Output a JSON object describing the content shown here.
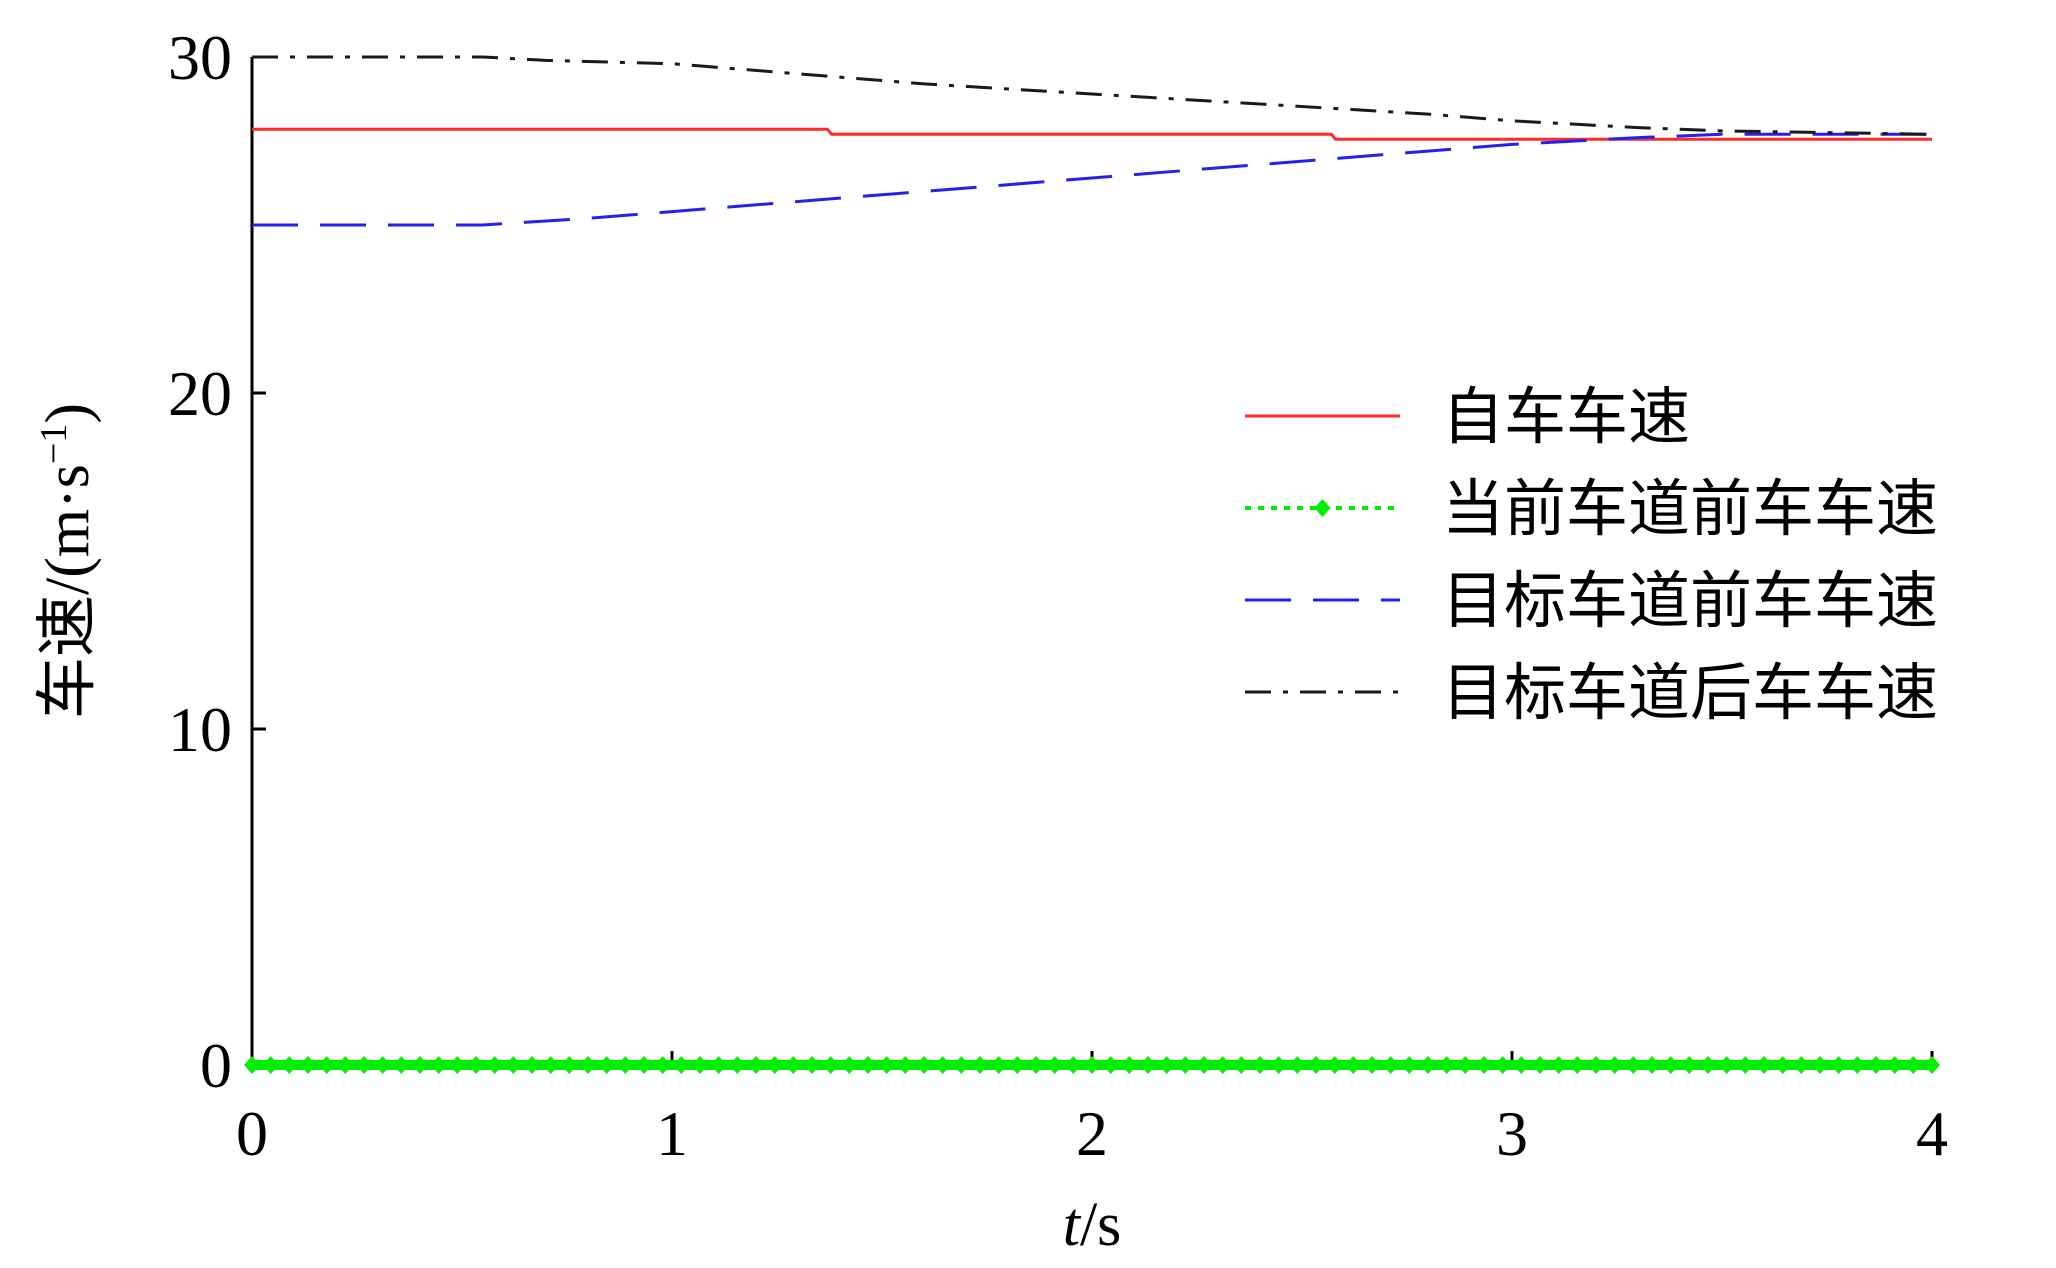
{
  "chart_data": {
    "type": "line",
    "xlabel": "t/s",
    "xlabel_italic": "t",
    "xlabel_unit": "/s",
    "ylabel": "车速/(m·s⁻¹)",
    "ylabel_text": "车速/(m·s",
    "ylabel_sup": "−1",
    "ylabel_close": ")",
    "xlim": [
      0,
      4
    ],
    "ylim": [
      0,
      30
    ],
    "xticks": [
      {
        "value": 0,
        "label": "0"
      },
      {
        "value": 1,
        "label": "1"
      },
      {
        "value": 2,
        "label": "2"
      },
      {
        "value": 3,
        "label": "3"
      },
      {
        "value": 4,
        "label": "4"
      }
    ],
    "yticks": [
      {
        "value": 0,
        "label": "0"
      },
      {
        "value": 10,
        "label": "10"
      },
      {
        "value": 20,
        "label": "20"
      },
      {
        "value": 30,
        "label": "30"
      }
    ],
    "grid": false,
    "legend_position": "center-right",
    "series": [
      {
        "name": "自车车速",
        "color": "#ff2a2a",
        "style": "solid",
        "x": [
          0,
          1.37,
          1.38,
          2.57,
          2.58,
          3.9,
          4.0
        ],
        "y": [
          27.85,
          27.85,
          27.7,
          27.7,
          27.55,
          27.55,
          27.55
        ]
      },
      {
        "name": "当前车道前车车速",
        "color": "#00ee00",
        "style": "dotted-marker",
        "x": [
          0,
          0.25,
          0.5,
          0.75,
          1.0,
          1.25,
          1.5,
          1.75,
          2.0,
          2.25,
          2.5,
          2.75,
          3.0,
          3.25,
          3.5,
          3.75,
          4.0
        ],
        "y": [
          0,
          0,
          0,
          0,
          0,
          0,
          0,
          0,
          0,
          0,
          0,
          0,
          0,
          0,
          0,
          0,
          0
        ]
      },
      {
        "name": "目标车道前车车速",
        "color": "#2222ee",
        "style": "dashed",
        "x": [
          0,
          0.55,
          0.8,
          1.0,
          1.3,
          1.6,
          2.0,
          2.4,
          2.8,
          3.0,
          3.3,
          3.5,
          4.0
        ],
        "y": [
          25.0,
          25.0,
          25.2,
          25.4,
          25.7,
          26.0,
          26.4,
          26.8,
          27.2,
          27.4,
          27.6,
          27.7,
          27.7
        ]
      },
      {
        "name": "目标车道后车车速",
        "color": "#1a1a1a",
        "style": "dashdot",
        "x": [
          0,
          0.55,
          0.7,
          1.0,
          1.3,
          1.6,
          2.0,
          2.4,
          2.8,
          3.0,
          3.3,
          3.5,
          4.0
        ],
        "y": [
          30.0,
          30.0,
          29.9,
          29.8,
          29.5,
          29.2,
          28.9,
          28.6,
          28.3,
          28.1,
          27.9,
          27.8,
          27.7
        ]
      }
    ]
  }
}
